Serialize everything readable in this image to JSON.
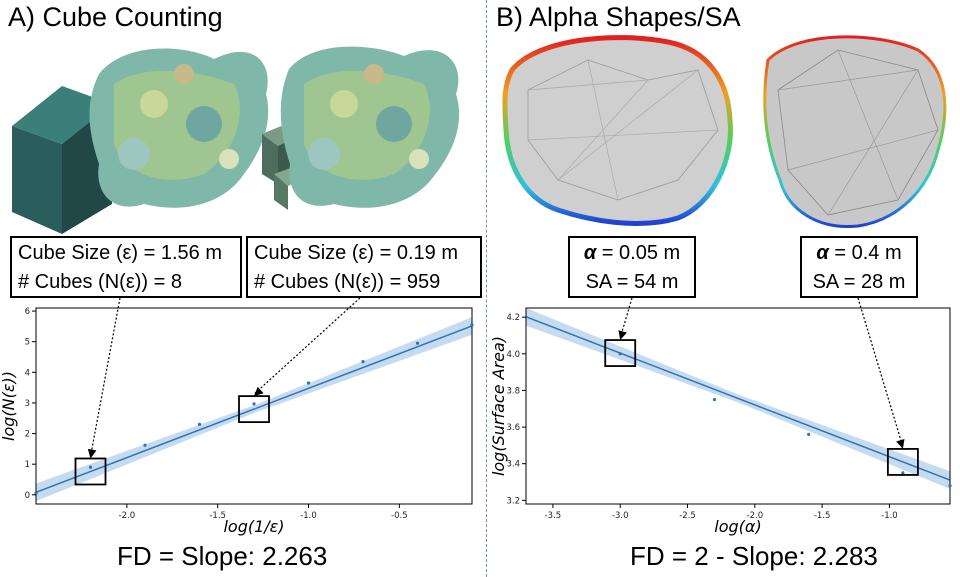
{
  "panels": {
    "a": {
      "title": "A) Cube Counting",
      "box1": {
        "line1": "Cube Size (ε) = 1.56 m",
        "line2": "# Cubes (N(ε)) = 8"
      },
      "box2": {
        "line1": "Cube Size (ε) = 0.19 m",
        "line2": "# Cubes (N(ε)) = 959"
      },
      "footer": "FD = Slope:  2.263"
    },
    "b": {
      "title": "B) Alpha Shapes/SA",
      "box1": {
        "alpha_sym": "α",
        "alpha_val": " = 0.05 m",
        "line2": "SA = 54 m"
      },
      "box2": {
        "alpha_sym": "α",
        "alpha_val": " = 0.4 m",
        "line2": "SA = 28 m"
      },
      "footer": "FD = 2 - Slope: 2.283"
    }
  },
  "chart_data": [
    {
      "type": "scatter",
      "xlabel": "log(1/ε)",
      "ylabel": "log(N(ε))",
      "xlim": [
        -2.5,
        -0.1
      ],
      "ylim": [
        -0.3,
        6.1
      ],
      "xticks": [
        -2.0,
        -1.5,
        -1.0,
        -0.5
      ],
      "xtick_labels": [
        "-2.0",
        "-1.5",
        "-1.0",
        "-0.5"
      ],
      "yticks": [
        0,
        1,
        2,
        3,
        4,
        5,
        6
      ],
      "ytick_labels": [
        "0",
        "1",
        "2",
        "3",
        "4",
        "5",
        "6"
      ],
      "x": [
        -2.5,
        -2.2,
        -1.9,
        -1.6,
        -1.3,
        -1.0,
        -0.7,
        -0.4,
        -0.1
      ],
      "y": [
        0.05,
        0.9,
        1.62,
        2.3,
        2.97,
        3.65,
        4.35,
        4.95,
        5.55
      ],
      "fit": {
        "slope": 2.263,
        "intercept": 5.74
      },
      "highlight_x": [
        -2.2,
        -1.3
      ],
      "line_color": "#2a76b8",
      "band_color": "#b8d2ec"
    },
    {
      "type": "scatter",
      "xlabel": "log(α)",
      "ylabel": "log(Surface Area)",
      "xlim": [
        -3.7,
        -0.55
      ],
      "ylim": [
        3.18,
        4.25
      ],
      "xticks": [
        -3.5,
        -3.0,
        -2.5,
        -2.0,
        -1.5,
        -1.0
      ],
      "xtick_labels": [
        "-3.5",
        "-3.0",
        "-2.5",
        "-2.0",
        "-1.5",
        "-1.0"
      ],
      "yticks": [
        3.2,
        3.4,
        3.6,
        3.8,
        4.0,
        4.2
      ],
      "ytick_labels": [
        "3.2",
        "3.4",
        "3.6",
        "3.8",
        "4.0",
        "4.2"
      ],
      "x": [
        -3.0,
        -2.3,
        -1.6,
        -0.9,
        -0.55
      ],
      "y": [
        4.0,
        3.75,
        3.56,
        3.35,
        3.28
      ],
      "fit": {
        "slope": -0.283,
        "intercept": 3.155
      },
      "highlight_x": [
        -3.0,
        -0.9
      ],
      "line_color": "#2a76b8",
      "band_color": "#b8d2ec"
    }
  ]
}
